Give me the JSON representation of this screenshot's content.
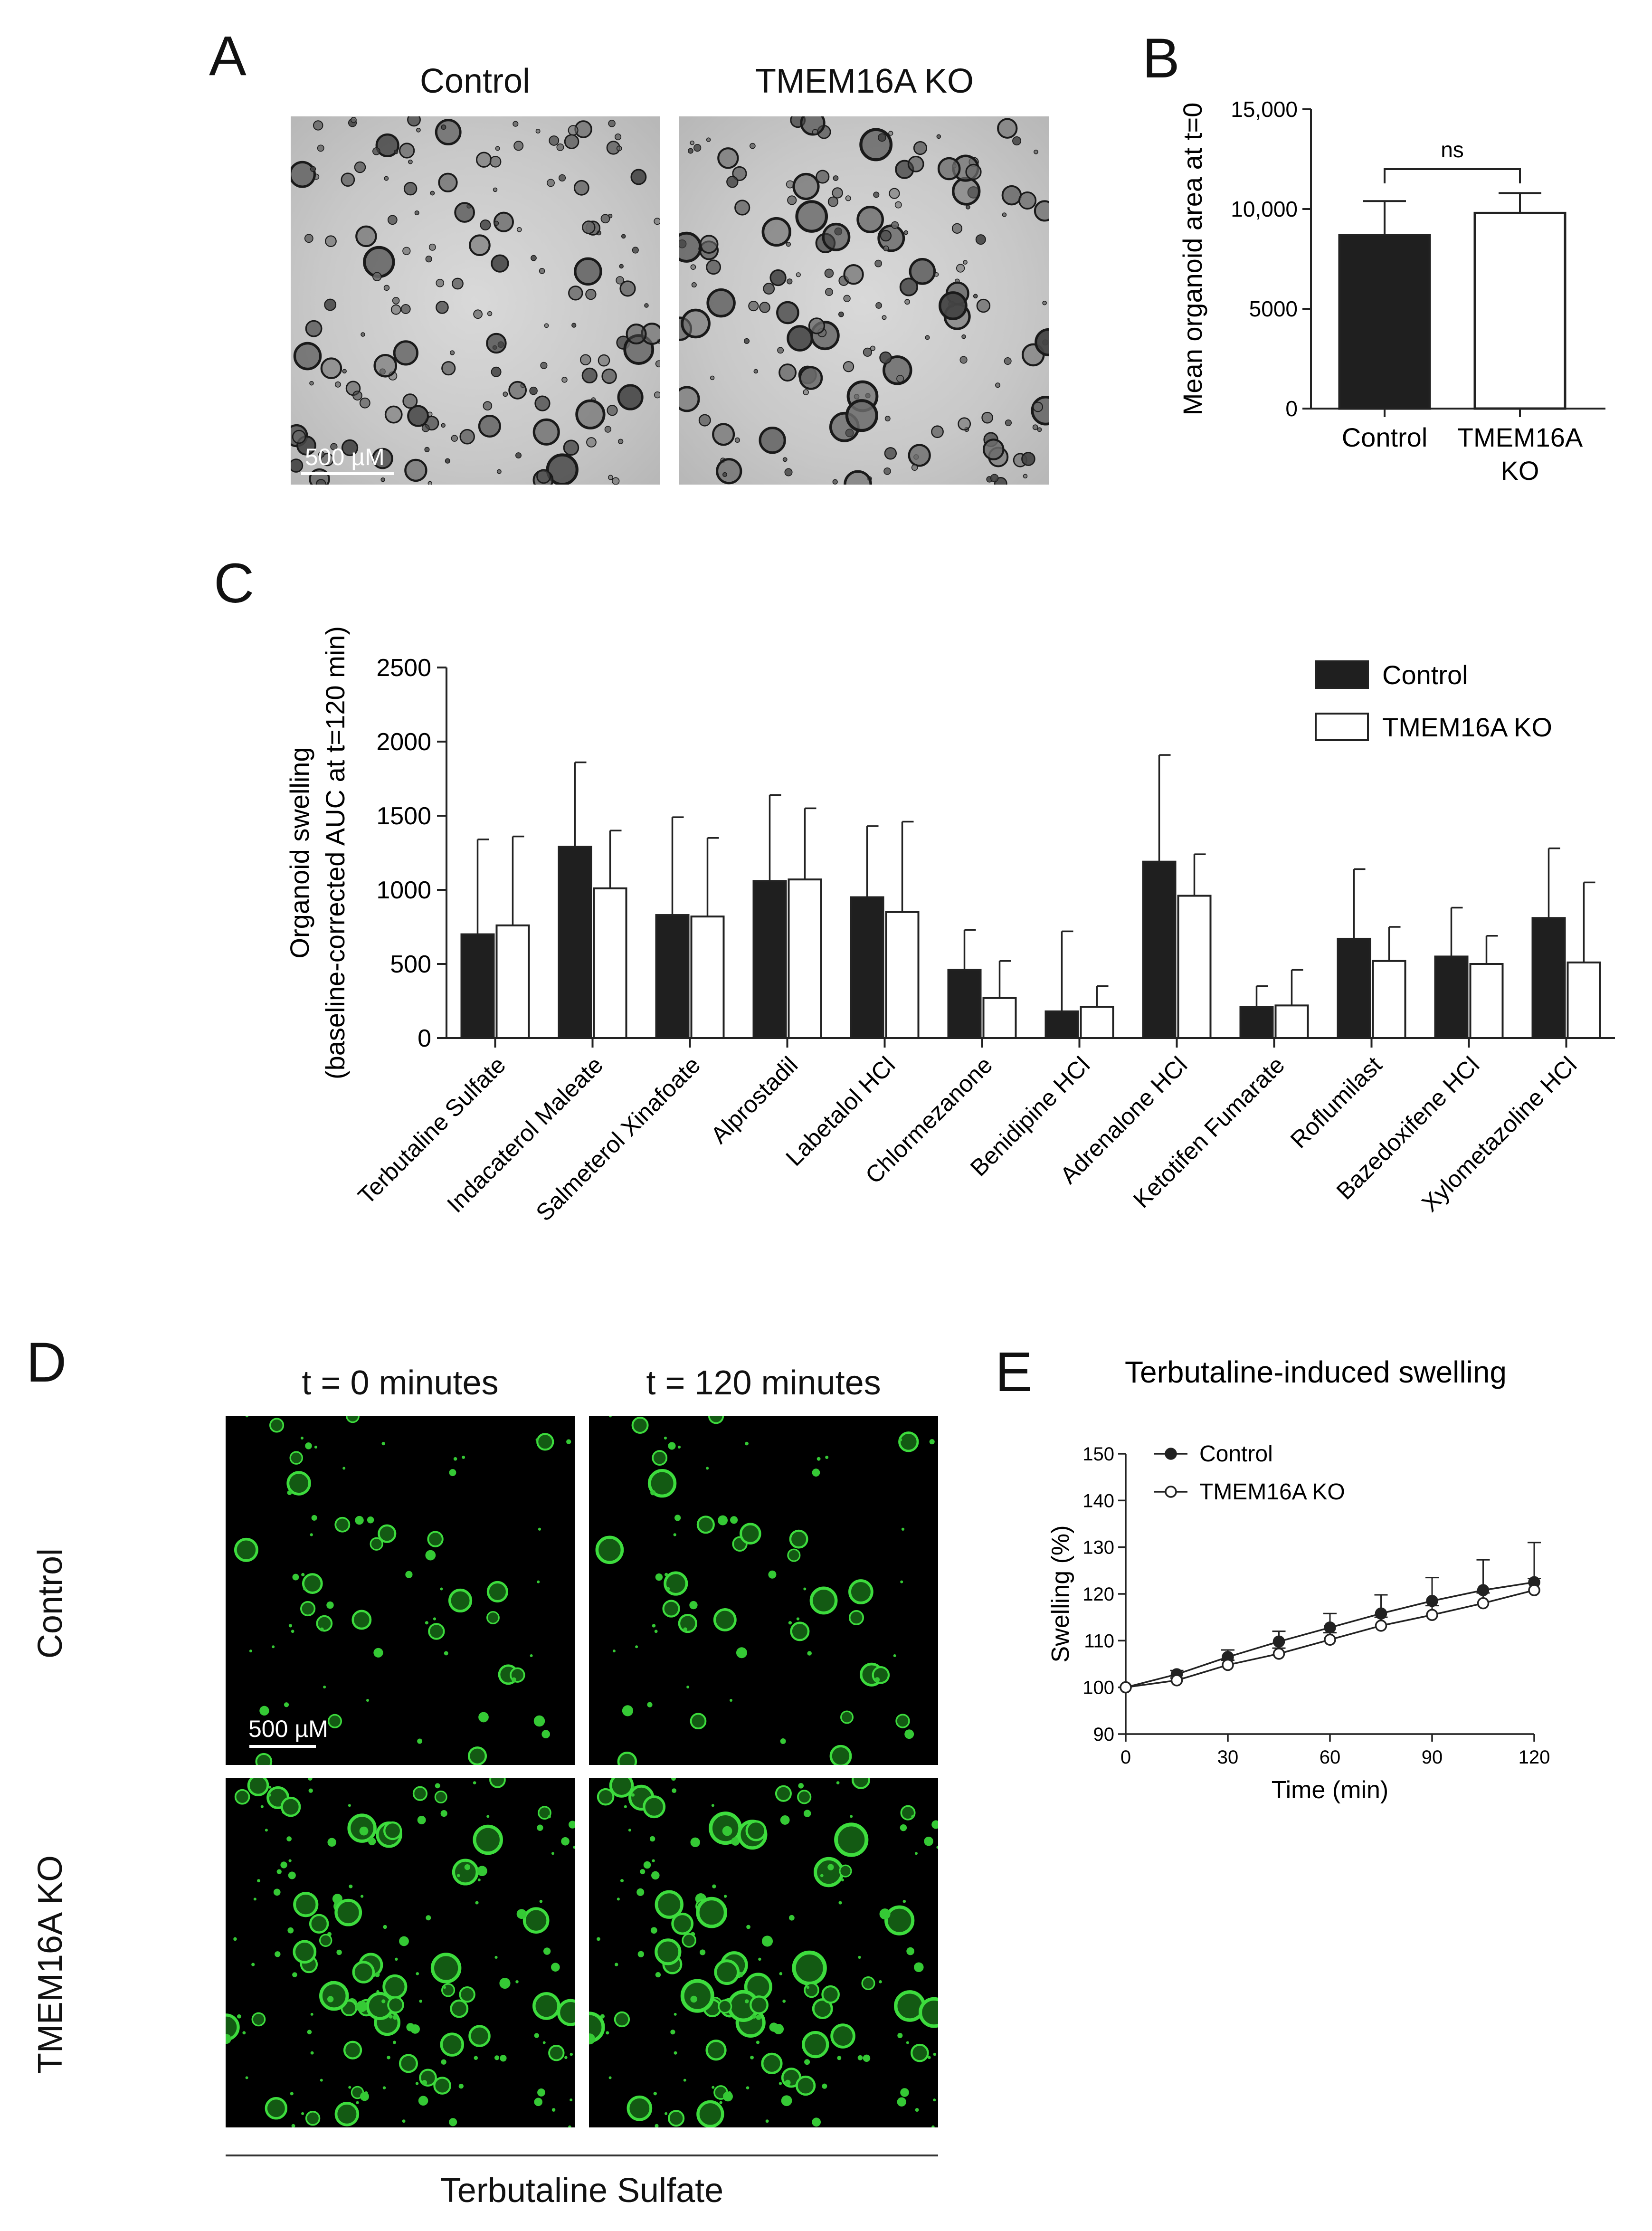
{
  "panels": {
    "a": {
      "letter": "A",
      "titles": [
        "Control",
        "TMEM16A KO"
      ],
      "scale_label": "500 µM"
    },
    "b": {
      "letter": "B"
    },
    "c": {
      "letter": "C"
    },
    "d": {
      "letter": "D",
      "col_titles": [
        "t = 0 minutes",
        "t = 120 minutes"
      ],
      "row_titles": [
        "Control",
        "TMEM16A KO"
      ],
      "scale_label": "500 µM",
      "footer": "Terbutaline Sulfate"
    },
    "e": {
      "letter": "E"
    }
  },
  "colors": {
    "control": "#1f1f1f",
    "ko": "#ffffff",
    "organoid_green": "#3ddc3d",
    "axis": "#222222"
  },
  "chart_data": [
    {
      "id": "B",
      "type": "bar",
      "categories": [
        "Control",
        "TMEM16A KO"
      ],
      "category_lines": [
        [
          "Control"
        ],
        [
          "TMEM16A",
          "KO"
        ]
      ],
      "values": [
        8700,
        9800
      ],
      "errors": [
        1700,
        1000
      ],
      "fills": [
        "#1f1f1f",
        "#ffffff"
      ],
      "ylabel": "Mean organoid area at t=0",
      "yticks": [
        0,
        5000,
        10000,
        15000
      ],
      "ytick_labels": [
        "0",
        "5000",
        "10,000",
        "15,000"
      ],
      "ylim": [
        0,
        15000
      ],
      "annotation": "ns"
    },
    {
      "id": "C",
      "type": "bar",
      "categories": [
        "Terbutaline Sulfate",
        "Indacaterol Maleate",
        "Salmeterol Xinafoate",
        "Alprostadil",
        "Labetalol HCl",
        "Chlormezanone",
        "Benidipine HCl",
        "Adrenalone HCl",
        "Ketotifen Fumarate",
        "Roflumilast",
        "Bazedoxifene HCl",
        "Xylometazoline HCl"
      ],
      "series": [
        {
          "name": "Control",
          "fill": "#1f1f1f",
          "values": [
            700,
            1290,
            830,
            1060,
            950,
            460,
            180,
            1190,
            210,
            670,
            550,
            810
          ],
          "errors": [
            640,
            570,
            660,
            580,
            480,
            270,
            540,
            720,
            140,
            470,
            330,
            470
          ]
        },
        {
          "name": "TMEM16A KO",
          "fill": "#ffffff",
          "values": [
            760,
            1010,
            820,
            1070,
            850,
            270,
            210,
            960,
            220,
            520,
            500,
            510
          ],
          "errors": [
            600,
            390,
            530,
            480,
            610,
            250,
            140,
            280,
            240,
            230,
            190,
            540
          ]
        }
      ],
      "ylabel_lines": [
        "Organoid swelling",
        "(baseline-corrected  AUC at t=120 min)"
      ],
      "yticks": [
        0,
        500,
        1000,
        1500,
        2000,
        2500
      ],
      "ylim": [
        0,
        2500
      ],
      "legend_position": "top-right"
    },
    {
      "id": "E",
      "type": "line",
      "title": "Terbutaline-induced swelling",
      "xlabel": "Time (min)",
      "ylabel": "Swelling (%)",
      "x": [
        0,
        15,
        30,
        45,
        60,
        75,
        90,
        105,
        120
      ],
      "xticks": [
        0,
        30,
        60,
        90,
        120
      ],
      "yticks": [
        90,
        100,
        110,
        120,
        130,
        140,
        150
      ],
      "xlim": [
        0,
        120
      ],
      "ylim": [
        90,
        150
      ],
      "series": [
        {
          "name": "Control",
          "marker": "filled",
          "values": [
            100,
            102.8,
            106.5,
            109.8,
            112.8,
            115.8,
            118.5,
            120.8,
            122.5
          ],
          "errors": [
            0,
            0.8,
            1.5,
            2.2,
            3.0,
            4.0,
            5.0,
            6.5,
            8.5
          ]
        },
        {
          "name": "TMEM16A KO",
          "marker": "open",
          "values": [
            100,
            101.5,
            104.8,
            107.2,
            110.2,
            113.2,
            115.5,
            118.0,
            120.8
          ],
          "errors": [
            0,
            0.5,
            1.0,
            1.2,
            1.5,
            1.8,
            2.0,
            2.2,
            2.5
          ]
        }
      ],
      "legend_position": "top-left"
    }
  ]
}
